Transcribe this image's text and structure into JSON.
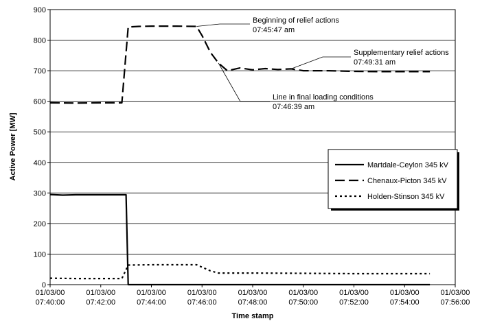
{
  "chart_data": {
    "type": "line",
    "title": "",
    "xlabel": "Time stamp",
    "ylabel": "Active Power [MW]",
    "ylim": [
      0,
      900
    ],
    "yticks": [
      0,
      100,
      200,
      300,
      400,
      500,
      600,
      700,
      800,
      900
    ],
    "xlim": [
      "07:40:00",
      "07:56:00"
    ],
    "xticks": [
      {
        "date": "01/03/00",
        "time": "07:40:00"
      },
      {
        "date": "01/03/00",
        "time": "07:42:00"
      },
      {
        "date": "01/03/00",
        "time": "07:44:00"
      },
      {
        "date": "01/03/00",
        "time": "07:46:00"
      },
      {
        "date": "01/03/00",
        "time": "07:48:00"
      },
      {
        "date": "01/03/00",
        "time": "07:50:00"
      },
      {
        "date": "01/03/00",
        "time": "07:52:00"
      },
      {
        "date": "01/03/00",
        "time": "07:54:00"
      },
      {
        "date": "01/03/00",
        "time": "07:56:00"
      }
    ],
    "grid": "horizontal",
    "legend_position": "right",
    "series": [
      {
        "name": "Martdale-Ceylon 345 kV",
        "style": "solid",
        "points": [
          [
            "07:40:00",
            295
          ],
          [
            "07:40:30",
            293
          ],
          [
            "07:41:00",
            294
          ],
          [
            "07:42:00",
            294
          ],
          [
            "07:43:00",
            294
          ],
          [
            "07:43:05",
            0
          ],
          [
            "07:45:00",
            0
          ],
          [
            "07:50:00",
            0
          ],
          [
            "07:55:00",
            0
          ]
        ]
      },
      {
        "name": "Chenaux-Picton 345 kV",
        "style": "dashed",
        "points": [
          [
            "07:40:00",
            595
          ],
          [
            "07:41:00",
            594
          ],
          [
            "07:42:00",
            595
          ],
          [
            "07:42:50",
            595
          ],
          [
            "07:43:05",
            843
          ],
          [
            "07:43:30",
            845
          ],
          [
            "07:44:00",
            846
          ],
          [
            "07:45:00",
            846
          ],
          [
            "07:45:47",
            845
          ],
          [
            "07:46:00",
            815
          ],
          [
            "07:46:20",
            760
          ],
          [
            "07:46:39",
            725
          ],
          [
            "07:47:00",
            700
          ],
          [
            "07:47:30",
            709
          ],
          [
            "07:48:00",
            703
          ],
          [
            "07:48:30",
            707
          ],
          [
            "07:49:00",
            704
          ],
          [
            "07:49:31",
            706
          ],
          [
            "07:50:00",
            700
          ],
          [
            "07:51:00",
            700
          ],
          [
            "07:52:00",
            698
          ],
          [
            "07:53:00",
            697
          ],
          [
            "07:54:00",
            697
          ],
          [
            "07:55:00",
            697
          ]
        ]
      },
      {
        "name": "Holden-Stinson 345 kV",
        "style": "dotted",
        "points": [
          [
            "07:40:00",
            21
          ],
          [
            "07:41:00",
            20
          ],
          [
            "07:42:00",
            20
          ],
          [
            "07:42:50",
            20
          ],
          [
            "07:43:05",
            64
          ],
          [
            "07:44:00",
            65
          ],
          [
            "07:45:00",
            65
          ],
          [
            "07:45:47",
            65
          ],
          [
            "07:46:20",
            45
          ],
          [
            "07:46:39",
            38
          ],
          [
            "07:48:00",
            38
          ],
          [
            "07:50:00",
            37
          ],
          [
            "07:52:00",
            36
          ],
          [
            "07:55:00",
            36
          ]
        ]
      }
    ],
    "annotations": [
      {
        "line1": "Beginning of relief actions",
        "line2": "07:45:47 am",
        "x": "07:45:47",
        "y": 845
      },
      {
        "line1": "Supplementary relief actions",
        "line2": "07:49:31 am",
        "x": "07:49:31",
        "y": 706
      },
      {
        "line1": "Line in final loading conditions",
        "line2": "07:46:39 am",
        "x": "07:46:39",
        "y": 725
      }
    ]
  }
}
